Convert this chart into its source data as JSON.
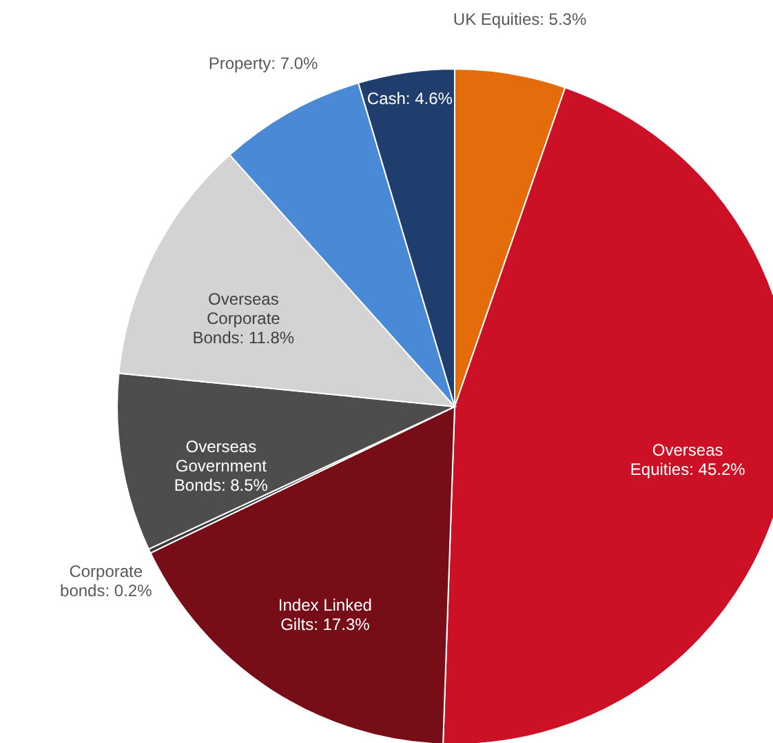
{
  "chart_data": {
    "type": "pie",
    "categories": [
      "UK Equities",
      "Overseas Equities",
      "Index Linked Gilts",
      "Corporate bonds",
      "Overseas Government Bonds",
      "Overseas Corporate Bonds",
      "Property",
      "Cash"
    ],
    "values": [
      5.3,
      45.2,
      17.3,
      0.2,
      8.5,
      11.8,
      7.0,
      4.6
    ],
    "value_labels": [
      "5.3%",
      "45.2%",
      "17.3%",
      "0.2%",
      "8.5%",
      "11.8%",
      "7.0%",
      "4.6%"
    ],
    "colors": [
      "#e46c0a",
      "#cc1126",
      "#760d17",
      "#3a3a3a",
      "#4d4d4d",
      "#d3d3d3",
      "#4a89d6",
      "#1f3e6e"
    ]
  }
}
